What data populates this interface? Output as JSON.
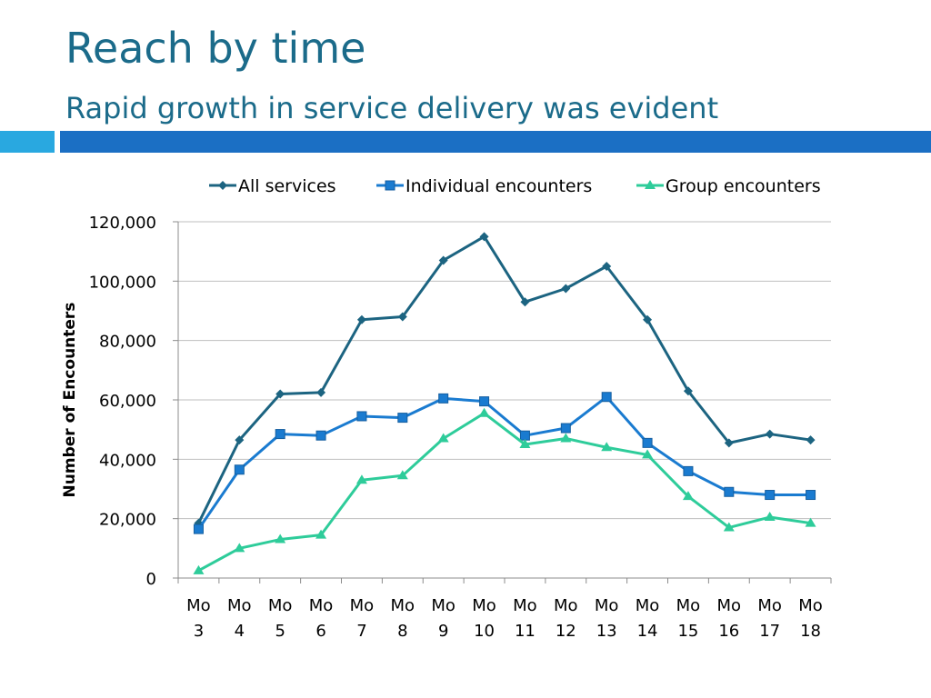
{
  "slide": {
    "title": "Reach by time",
    "subtitle": "Rapid growth in service delivery was evident"
  },
  "colors": {
    "title": "#1b6b8a",
    "accent_light": "#29a8e0",
    "accent_dark": "#1b6fc4",
    "grid": "#bfbfbf"
  },
  "chart_data": {
    "type": "line",
    "title": "",
    "xlabel": "",
    "ylabel": "Number of Encounters",
    "ylim": [
      0,
      120000
    ],
    "yticks": [
      "0",
      "20,000",
      "40,000",
      "60,000",
      "80,000",
      "100,000",
      "120,000"
    ],
    "grid": true,
    "legend_position": "top",
    "categories": [
      [
        "Mo",
        "3"
      ],
      [
        "Mo",
        "4"
      ],
      [
        "Mo",
        "5"
      ],
      [
        "Mo",
        "6"
      ],
      [
        "Mo",
        "7"
      ],
      [
        "Mo",
        "8"
      ],
      [
        "Mo",
        "9"
      ],
      [
        "Mo",
        "10"
      ],
      [
        "Mo",
        "11"
      ],
      [
        "Mo",
        "12"
      ],
      [
        "Mo",
        "13"
      ],
      [
        "Mo",
        "14"
      ],
      [
        "Mo",
        "15"
      ],
      [
        "Mo",
        "16"
      ],
      [
        "Mo",
        "17"
      ],
      [
        "Mo",
        "18"
      ]
    ],
    "series": [
      {
        "name": "All services",
        "color": "#1c6481",
        "marker": "diamond",
        "values": [
          18500,
          46500,
          62000,
          62500,
          87000,
          88000,
          107000,
          115000,
          93000,
          97500,
          105000,
          87000,
          63000,
          45500,
          48500,
          46500
        ]
      },
      {
        "name": "Individual encounters",
        "color": "#1a7bd0",
        "marker": "square",
        "values": [
          16500,
          36500,
          48500,
          48000,
          54500,
          54000,
          60500,
          59500,
          48000,
          50500,
          61000,
          45500,
          36000,
          29000,
          28000,
          28000
        ]
      },
      {
        "name": "Group encounters",
        "color": "#2ecc9a",
        "marker": "triangle",
        "values": [
          2500,
          10000,
          13000,
          14500,
          33000,
          34500,
          47000,
          55500,
          45000,
          47000,
          44000,
          41500,
          27500,
          17000,
          20500,
          18500
        ]
      }
    ]
  }
}
